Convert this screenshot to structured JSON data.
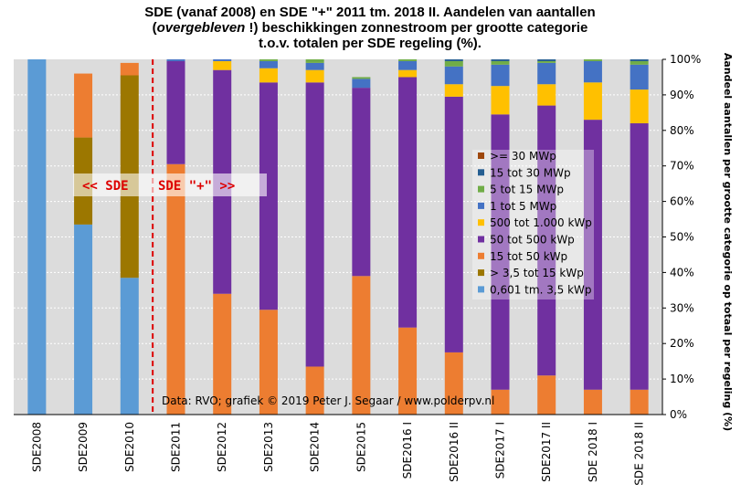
{
  "title": {
    "line1": "SDE (vanaf 2008) en SDE \"+\" 2011 tm. 2018 II. Aandelen van aantallen",
    "line2_italic": "overgebleven",
    "line2_pre": "(",
    "line2_post": " !) beschikkingen  zonnestroom per grootte categorie",
    "line3": "t.o.v. totalen per SDE regeling (%)."
  },
  "annotation": {
    "left": "<<  SDE",
    "right": "SDE \"+\"  >>"
  },
  "credit": "Data: RVO;  grafiek © 2019 Peter J. Segaar / www.polderpv.nl",
  "chart_data": {
    "type": "bar",
    "stacked": true,
    "categories": [
      "SDE2008",
      "SDE2009",
      "SDE2010",
      "SDE2011",
      "SDE2012",
      "SDE2013",
      "SDE2014",
      "SDE2015",
      "SDE2016 I",
      "SDE2016 II",
      "SDE2017 I",
      "SDE2017 II",
      "SDE 2018 I",
      "SDE 2018 II"
    ],
    "ylabel": "Aandeel aantallen per grootte categorie op totaal per regeling (%)",
    "ylim": [
      0,
      100
    ],
    "yticks": [
      "0%",
      "10%",
      "20%",
      "30%",
      "40%",
      "50%",
      "60%",
      "70%",
      "80%",
      "90%",
      "100%"
    ],
    "y_axis_side": "right",
    "grid": true,
    "legend_position": "center-right",
    "divider_after_category": "SDE2010",
    "series": [
      {
        "name": "0,601 tm. 3,5 kWp",
        "color": "#5b9bd5",
        "values": [
          100,
          53.5,
          38.5,
          0,
          0,
          0,
          0,
          0,
          0,
          0,
          0,
          0,
          0,
          0
        ]
      },
      {
        "name": "> 3,5 tot 15 kWp",
        "color": "#9c7700",
        "values": [
          0,
          24.5,
          57,
          0,
          0,
          0,
          0,
          0,
          0,
          0,
          0,
          0,
          0,
          0
        ]
      },
      {
        "name": "15 tot 50 kWp",
        "color": "#ed7d31",
        "values": [
          0,
          18,
          3.5,
          70.5,
          34,
          29.5,
          13.5,
          39,
          24.5,
          17.5,
          7,
          11,
          7,
          7
        ]
      },
      {
        "name": "50 tot 500 kWp",
        "color": "#7030a0",
        "values": [
          0,
          0,
          0,
          29,
          63,
          64,
          80,
          53,
          70.5,
          72,
          77.5,
          76,
          76,
          75
        ]
      },
      {
        "name": "500 tot 1.000 kWp",
        "color": "#ffc000",
        "values": [
          0,
          0,
          0,
          0,
          2.5,
          4,
          3.5,
          0,
          2,
          3.5,
          8,
          6,
          10.5,
          9.5
        ]
      },
      {
        "name": "1 tot 5 MWp",
        "color": "#4472c4",
        "values": [
          0,
          0,
          0,
          0.5,
          0.5,
          2,
          2,
          2.5,
          2.5,
          5,
          6,
          6,
          6,
          7
        ]
      },
      {
        "name": "5 tot 15 MWp",
        "color": "#70ad47",
        "values": [
          0,
          0,
          0,
          0,
          0,
          0.5,
          1,
          0.5,
          0.5,
          1.5,
          1,
          0.5,
          0.5,
          1
        ]
      },
      {
        "name": "15 tot 30 MWp",
        "color": "#255e91",
        "values": [
          0,
          0,
          0,
          0,
          0,
          0,
          0,
          0,
          0,
          0.5,
          0.5,
          0.5,
          0,
          0.5
        ]
      },
      {
        "name": ">= 30 MWp",
        "color": "#9e480e",
        "values": [
          0,
          0,
          0,
          0,
          0,
          0,
          0,
          0,
          0,
          0,
          0,
          0,
          0,
          0
        ]
      }
    ],
    "colors": {
      "background": "#dcdcdc",
      "divider": "#dd0000",
      "annotation": "#dd0000",
      "legend_box": "#ffffff"
    }
  }
}
